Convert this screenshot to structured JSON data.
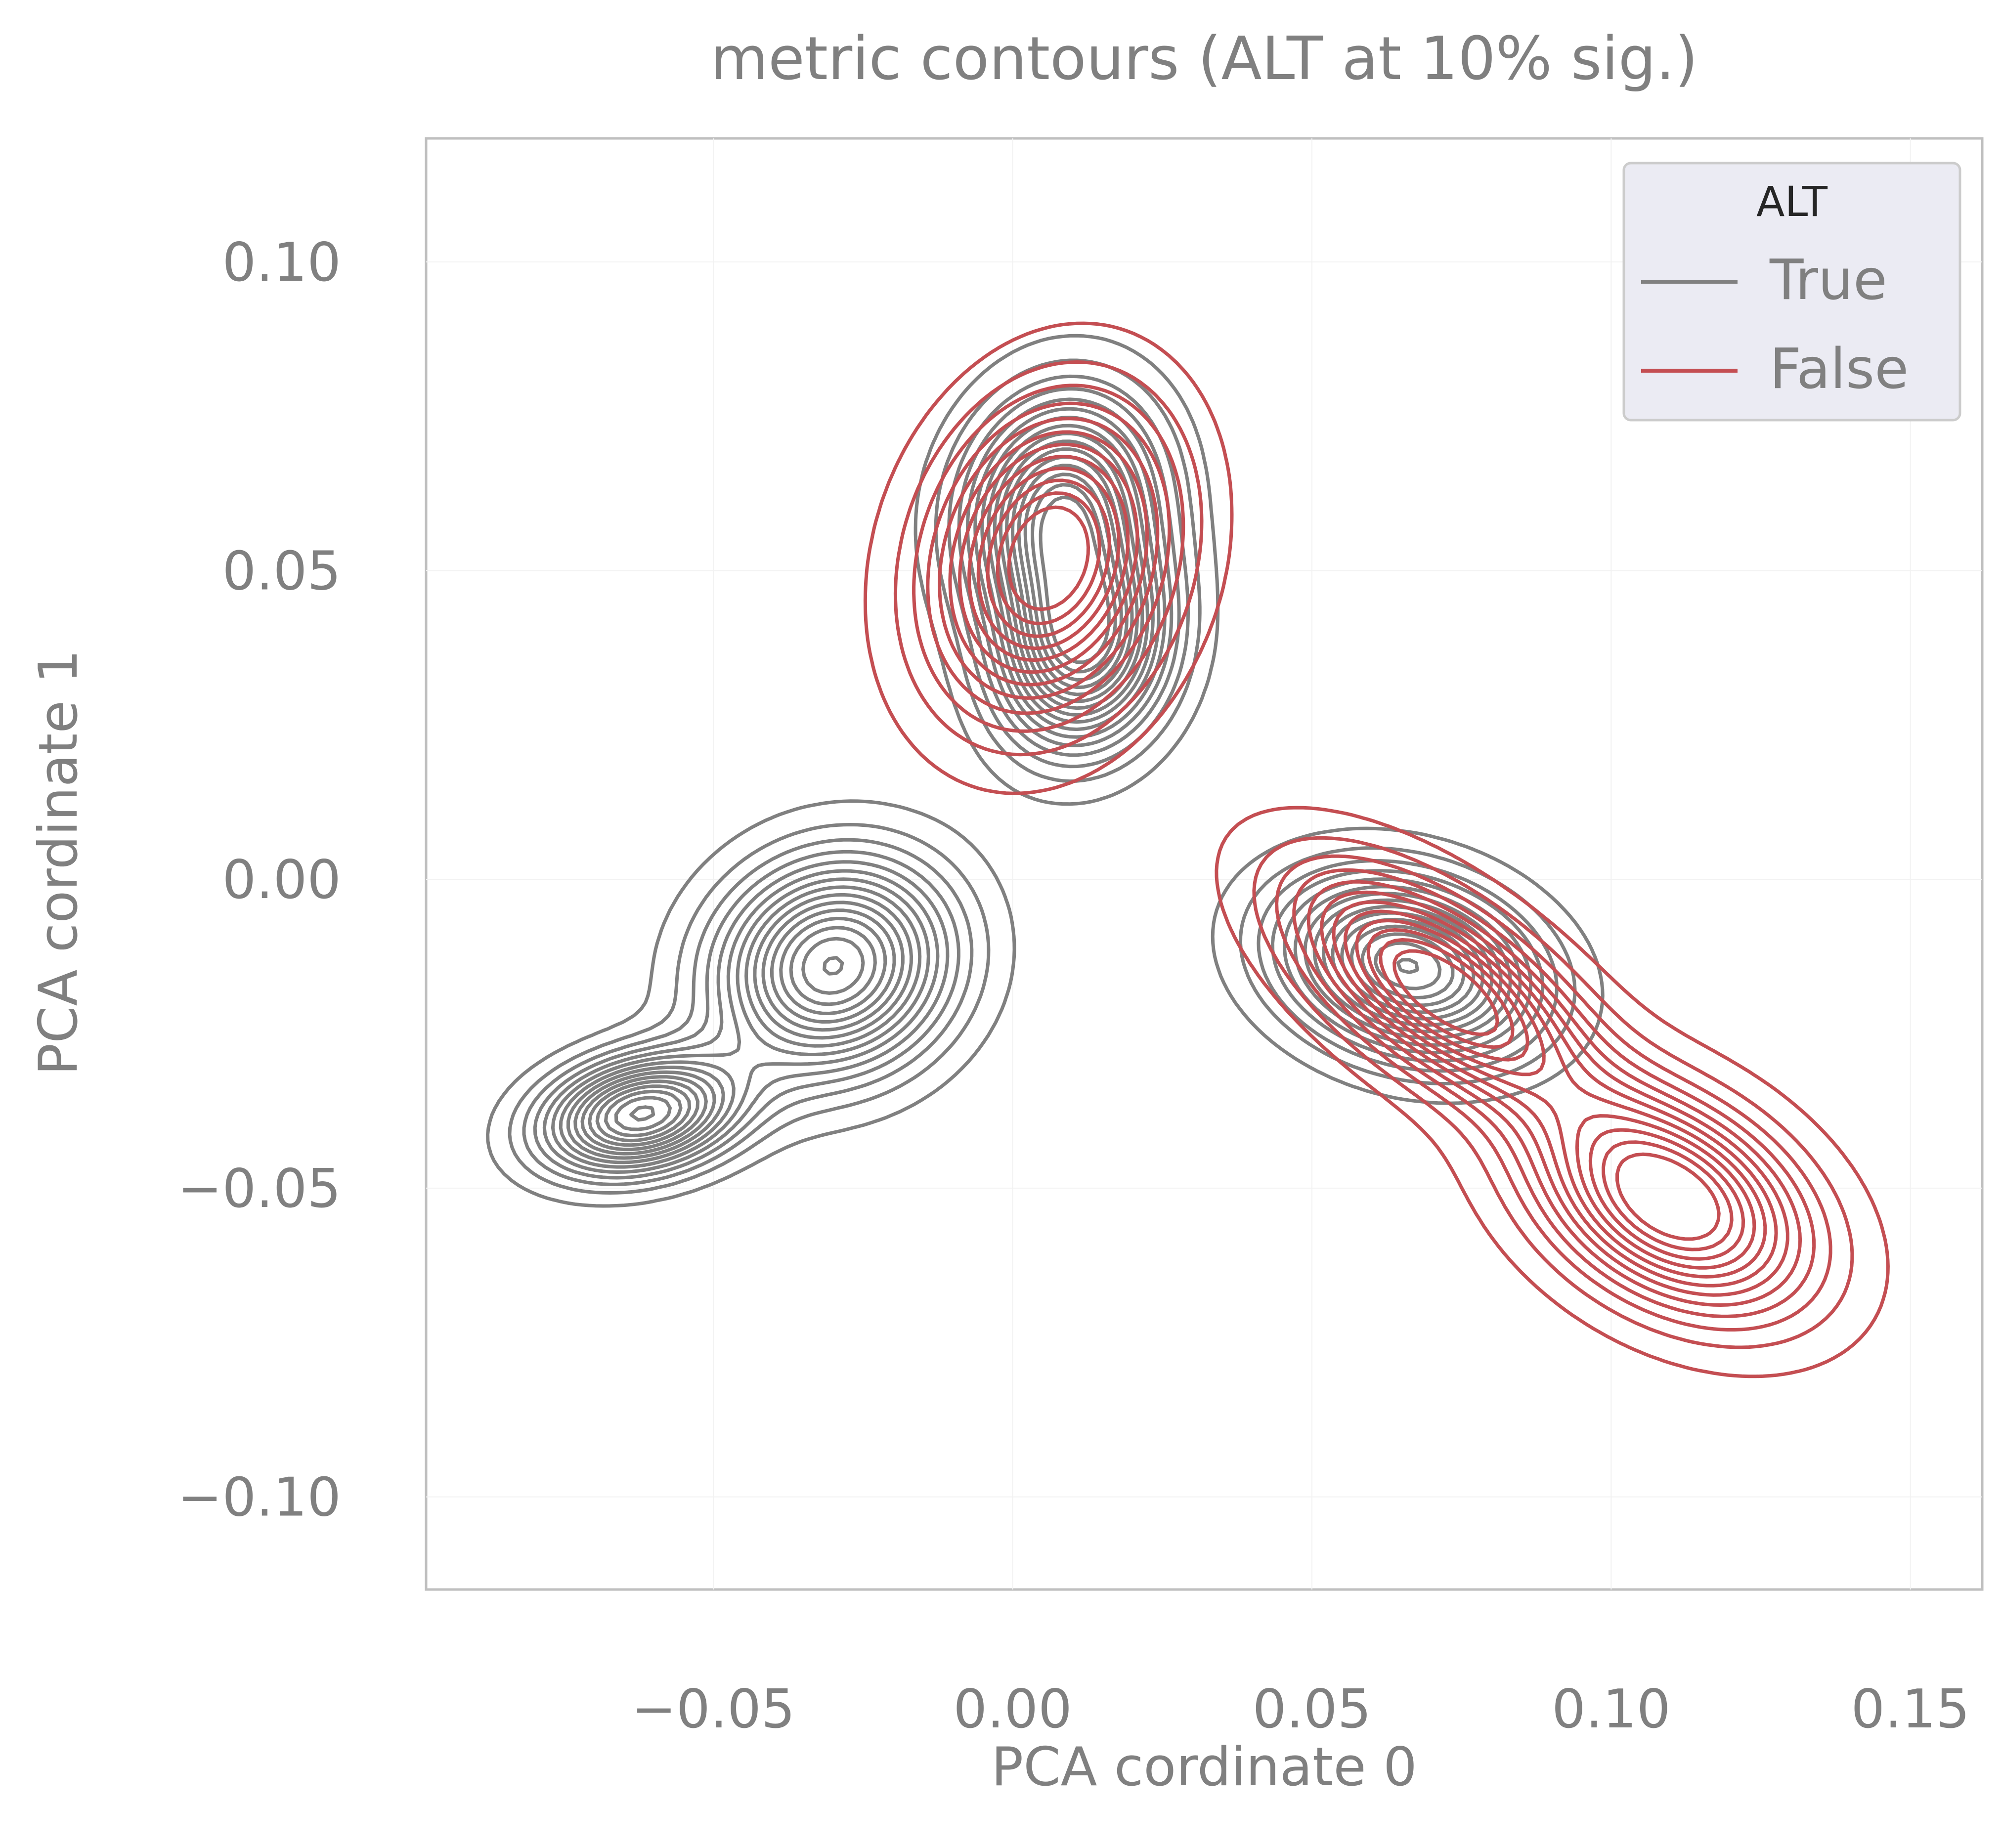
{
  "chart_data": {
    "type": "contour",
    "title": "metric contours (ALT at 10% sig.)",
    "xlabel": "PCA cordinate 0",
    "ylabel": "PCA cordinate 1",
    "xlim": [
      -0.098,
      0.162
    ],
    "ylim": [
      -0.115,
      0.12
    ],
    "xticks": [
      -0.05,
      0.0,
      0.05,
      0.1,
      0.15
    ],
    "xtick_labels": [
      "−0.05",
      "0.00",
      "0.05",
      "0.10",
      "0.15"
    ],
    "yticks": [
      0.1,
      0.05,
      0.0,
      -0.05,
      -0.1
    ],
    "ytick_labels": [
      "0.10",
      "0.05",
      "0.00",
      "−0.05",
      "−0.10"
    ],
    "grid": true,
    "legend": {
      "title": "ALT",
      "position": "top-right",
      "entries": [
        {
          "label": "True",
          "color": "#808080"
        },
        {
          "label": "False",
          "color": "#c44e52"
        }
      ]
    },
    "series": [
      {
        "name": "True",
        "color": "#808080",
        "levels": 16,
        "modes": [
          {
            "x": -0.062,
            "y": -0.038,
            "sx": 0.011,
            "sy": 0.006,
            "rot": 0.2
          },
          {
            "x": -0.03,
            "y": -0.014,
            "sx": 0.013,
            "sy": 0.011,
            "rot": 0.35
          },
          {
            "x": 0.008,
            "y": 0.06,
            "sx": 0.01,
            "sy": 0.012,
            "rot": -0.3
          },
          {
            "x": 0.012,
            "y": 0.038,
            "sx": 0.009,
            "sy": 0.011,
            "rot": -0.3
          },
          {
            "x": 0.066,
            "y": -0.014,
            "sx": 0.014,
            "sy": 0.009,
            "rot": -0.25
          }
        ],
        "outer_extent": {
          "x": [
            -0.092,
            0.102
          ],
          "y": [
            -0.06,
            0.084
          ]
        }
      },
      {
        "name": "False",
        "color": "#c44e52",
        "levels": 12,
        "modes": [
          {
            "x": 0.006,
            "y": 0.052,
            "sx": 0.012,
            "sy": 0.016,
            "rot": -0.35
          },
          {
            "x": 0.072,
            "y": -0.018,
            "sx": 0.018,
            "sy": 0.008,
            "rot": -0.6
          },
          {
            "x": 0.11,
            "y": -0.052,
            "sx": 0.016,
            "sy": 0.01,
            "rot": -0.5
          }
        ],
        "outer_extent": {
          "x": [
            -0.024,
            0.133
          ],
          "y": [
            -0.074,
            0.086
          ]
        }
      }
    ]
  }
}
